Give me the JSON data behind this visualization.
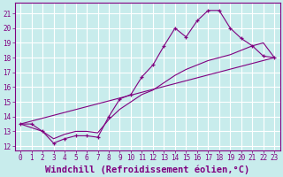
{
  "xlabel": "Windchill (Refroidissement éolien,°C)",
  "background_color": "#c8ecec",
  "grid_color": "#ffffff",
  "line_color": "#800080",
  "xlim": [
    -0.5,
    23.5
  ],
  "ylim": [
    11.7,
    21.7
  ],
  "yticks": [
    12,
    13,
    14,
    15,
    16,
    17,
    18,
    19,
    20,
    21
  ],
  "xticks": [
    0,
    1,
    2,
    3,
    4,
    5,
    6,
    7,
    8,
    9,
    10,
    11,
    12,
    13,
    14,
    15,
    16,
    17,
    18,
    19,
    20,
    21,
    22,
    23
  ],
  "line1_x": [
    0,
    1,
    2,
    3,
    4,
    5,
    6,
    7,
    8,
    9,
    10,
    11,
    12,
    13,
    14,
    15,
    16,
    17,
    18,
    19,
    20,
    21,
    22,
    23
  ],
  "line1_y": [
    13.5,
    13.5,
    13.0,
    12.2,
    12.5,
    12.7,
    12.7,
    12.6,
    14.0,
    15.2,
    15.5,
    16.7,
    17.5,
    18.8,
    20.0,
    19.4,
    20.5,
    21.2,
    21.2,
    20.0,
    19.3,
    18.8,
    18.1,
    18.0
  ],
  "line2_x": [
    0,
    23
  ],
  "line2_y": [
    13.5,
    18.0
  ],
  "line3_x": [
    0,
    2,
    3,
    4,
    5,
    6,
    7,
    8,
    9,
    10,
    11,
    12,
    13,
    14,
    15,
    16,
    17,
    18,
    19,
    20,
    21,
    22,
    23
  ],
  "line3_y": [
    13.5,
    13.0,
    12.5,
    12.8,
    13.0,
    13.0,
    12.9,
    13.8,
    14.5,
    15.0,
    15.5,
    15.8,
    16.3,
    16.8,
    17.2,
    17.5,
    17.8,
    18.0,
    18.2,
    18.5,
    18.8,
    19.0,
    18.0
  ],
  "tick_fontsize": 5.5,
  "label_fontsize": 7.5
}
